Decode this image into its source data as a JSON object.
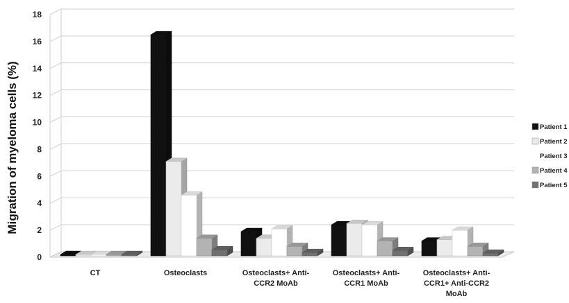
{
  "chart_data": {
    "type": "bar",
    "ylabel": "Migration of myeloma cells (%)",
    "ylim": [
      0,
      18
    ],
    "yticks": [
      0,
      2,
      4,
      6,
      8,
      10,
      12,
      14,
      16,
      18
    ],
    "grid": true,
    "legend_position": "right",
    "categories": [
      [
        "CT"
      ],
      [
        "Osteoclasts"
      ],
      [
        "Osteoclasts+ Anti-",
        "CCR2 MoAb"
      ],
      [
        "Osteoclasts+ Anti-",
        "CCR1 MoAb"
      ],
      [
        "Osteoclasts+ Anti-",
        "CCR1+ Anti-CCR2",
        "MoAb"
      ]
    ],
    "series": [
      {
        "name": "Patient 1",
        "color": "#111111",
        "values": [
          0.1,
          16.4,
          1.8,
          2.3,
          1.1
        ]
      },
      {
        "name": "Patient 2",
        "color": "#ebebeb",
        "values": [
          0.1,
          7.0,
          1.3,
          2.4,
          1.2
        ]
      },
      {
        "name": "Patient 3",
        "color": "#ffffff",
        "values": [
          0.1,
          4.5,
          2.0,
          2.3,
          1.9
        ]
      },
      {
        "name": "Patient 4",
        "color": "#b3b3b3",
        "values": [
          0.1,
          1.3,
          0.7,
          1.1,
          0.7
        ]
      },
      {
        "name": "Patient 5",
        "color": "#707070",
        "values": [
          0.1,
          0.45,
          0.25,
          0.4,
          0.2
        ]
      }
    ]
  }
}
